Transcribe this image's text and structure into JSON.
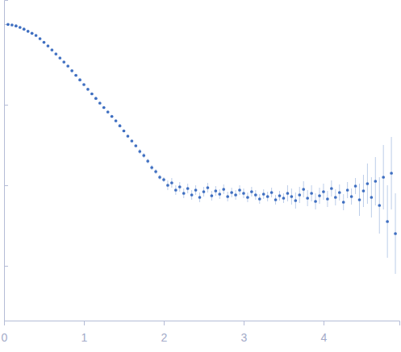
{
  "chart_data": {
    "type": "scatter",
    "x": [
      0.05,
      0.1,
      0.15,
      0.2,
      0.25,
      0.3,
      0.35,
      0.4,
      0.45,
      0.5,
      0.55,
      0.6,
      0.65,
      0.7,
      0.75,
      0.8,
      0.85,
      0.9,
      0.95,
      1.0,
      1.05,
      1.1,
      1.15,
      1.2,
      1.25,
      1.3,
      1.35,
      1.4,
      1.45,
      1.5,
      1.55,
      1.6,
      1.65,
      1.7,
      1.75,
      1.8,
      1.85,
      1.9,
      1.95,
      2.0,
      2.05,
      2.1,
      2.15,
      2.2,
      2.25,
      2.3,
      2.35,
      2.4,
      2.45,
      2.5,
      2.55,
      2.6,
      2.65,
      2.7,
      2.75,
      2.8,
      2.85,
      2.9,
      2.95,
      3.0,
      3.05,
      3.1,
      3.15,
      3.2,
      3.25,
      3.3,
      3.35,
      3.4,
      3.45,
      3.5,
      3.55,
      3.6,
      3.65,
      3.7,
      3.75,
      3.8,
      3.85,
      3.9,
      3.95,
      4.0,
      4.05,
      4.1,
      4.15,
      4.2,
      4.25,
      4.3,
      4.35,
      4.4,
      4.45,
      4.5,
      4.55,
      4.6,
      4.65,
      4.7,
      4.75,
      4.8,
      4.85,
      4.9
    ],
    "series": [
      {
        "color": "#3f6fc1",
        "marker": "circle",
        "values": [
          -0.003,
          -0.01,
          -0.022,
          -0.04,
          -0.062,
          -0.088,
          -0.113,
          -0.14,
          -0.18,
          -0.225,
          -0.27,
          -0.32,
          -0.37,
          -0.42,
          -0.47,
          -0.52,
          -0.578,
          -0.635,
          -0.692,
          -0.75,
          -0.808,
          -0.865,
          -0.922,
          -0.98,
          -1.035,
          -1.09,
          -1.145,
          -1.2,
          -1.262,
          -1.325,
          -1.39,
          -1.45,
          -1.51,
          -1.58,
          -1.63,
          -1.7,
          -1.78,
          -1.83,
          -1.9,
          -1.93,
          -2.0,
          -1.97,
          -2.06,
          -2.02,
          -2.1,
          -2.04,
          -2.12,
          -2.06,
          -2.15,
          -2.08,
          -2.03,
          -2.13,
          -2.07,
          -2.11,
          -2.05,
          -2.14,
          -2.09,
          -2.12,
          -2.06,
          -2.1,
          -2.15,
          -2.08,
          -2.12,
          -2.17,
          -2.11,
          -2.14,
          -2.09,
          -2.18,
          -2.13,
          -2.16,
          -2.1,
          -2.14,
          -2.19,
          -2.12,
          -2.05,
          -2.16,
          -2.1,
          -2.2,
          -2.13,
          -2.08,
          -2.17,
          -2.04,
          -2.15,
          -2.09,
          -2.21,
          -2.06,
          -2.14,
          -2.01,
          -2.18,
          -2.07,
          -1.98,
          -2.15,
          -1.95,
          -2.25,
          -1.9,
          -2.45,
          -1.85,
          -2.6
        ],
        "errors": [
          0.005,
          0.005,
          0.005,
          0.005,
          0.005,
          0.005,
          0.005,
          0.005,
          0.005,
          0.005,
          0.005,
          0.005,
          0.005,
          0.005,
          0.005,
          0.005,
          0.005,
          0.005,
          0.005,
          0.005,
          0.005,
          0.005,
          0.005,
          0.005,
          0.005,
          0.005,
          0.005,
          0.005,
          0.005,
          0.005,
          0.005,
          0.005,
          0.005,
          0.03,
          0.03,
          0.03,
          0.03,
          0.03,
          0.03,
          0.03,
          0.06,
          0.06,
          0.06,
          0.06,
          0.06,
          0.06,
          0.06,
          0.06,
          0.06,
          0.06,
          0.06,
          0.06,
          0.06,
          0.06,
          0.06,
          0.06,
          0.06,
          0.06,
          0.06,
          0.06,
          0.06,
          0.06,
          0.06,
          0.06,
          0.06,
          0.06,
          0.06,
          0.06,
          0.06,
          0.06,
          0.1,
          0.1,
          0.1,
          0.1,
          0.1,
          0.1,
          0.1,
          0.1,
          0.1,
          0.1,
          0.1,
          0.1,
          0.1,
          0.1,
          0.1,
          0.1,
          0.1,
          0.1,
          0.2,
          0.2,
          0.25,
          0.25,
          0.3,
          0.35,
          0.4,
          0.45,
          0.45,
          0.5
        ]
      }
    ],
    "xlim": [
      0,
      4.95
    ],
    "xticks": [
      0,
      1,
      2,
      3,
      4
    ],
    "ylim": [
      -3.68,
      0.3
    ],
    "yticks": [
      0,
      -1,
      -2,
      -3
    ],
    "tick_labels": "x",
    "grid": false
  }
}
